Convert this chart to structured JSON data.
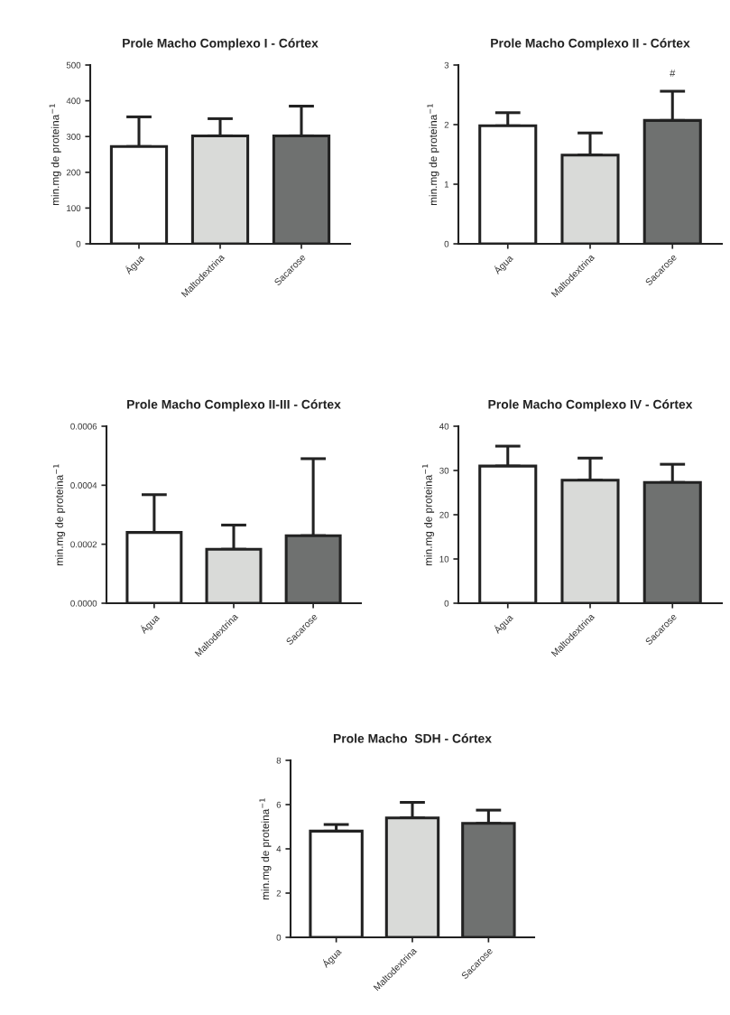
{
  "chart_data": [
    {
      "type": "bar",
      "title": "Prole Macho Complexo I - Córtex",
      "ylabel": "min.mg de proteina$^{−1}$",
      "categories": [
        "Água",
        "Maltodextrina",
        "Sacarose"
      ],
      "values": [
        272,
        302,
        302
      ],
      "colors": [
        "#ffffff",
        "#d9dad8",
        "#6f7170"
      ],
      "errors": [
        [
          272,
          355
        ],
        [
          302,
          350
        ],
        [
          302,
          385
        ]
      ],
      "ylim": [
        0,
        500
      ],
      "yticks": [
        0,
        100,
        200,
        300,
        400,
        500
      ],
      "grid": false,
      "legend": false
    },
    {
      "type": "bar",
      "title": "Prole Macho Complexo II - Córtex",
      "ylabel": "min.mg de proteina$^{−1}$",
      "categories": [
        "Água",
        "Maltodextrina",
        "Sacarose"
      ],
      "values": [
        1.98,
        1.49,
        2.07
      ],
      "colors": [
        "#ffffff",
        "#d9dad8",
        "#6f7170"
      ],
      "errors": [
        [
          1.98,
          2.2
        ],
        [
          1.49,
          1.86
        ],
        [
          2.07,
          2.56
        ]
      ],
      "ylim": [
        0,
        3
      ],
      "yticks": [
        0,
        1,
        2,
        3
      ],
      "annotations": [
        "#"
      ],
      "grid": false,
      "legend": false
    },
    {
      "type": "bar",
      "title": "Prole Macho Complexo II-III - Córtex",
      "ylabel": "min.mg de proteina$^{−1}$",
      "categories": [
        "Água",
        "Maltodextrina",
        "Sacarose"
      ],
      "values": [
        0.00024,
        0.000183,
        0.000229
      ],
      "colors": [
        "#ffffff",
        "#d9dad8",
        "#6f7170"
      ],
      "errors": [
        [
          0.00024,
          0.000368
        ],
        [
          0.000183,
          0.000265
        ],
        [
          0.000229,
          0.00049
        ]
      ],
      "ylim": [
        0,
        0.0006
      ],
      "yticks": [
        {
          "value": 0,
          "label": "0.0000"
        },
        {
          "value": 0.0002,
          "label": "0.0002"
        },
        {
          "value": 0.0004,
          "label": "0.0004"
        },
        {
          "value": 0.0006,
          "label": "0.0006"
        }
      ],
      "grid": false,
      "legend": false
    },
    {
      "type": "bar",
      "title": "Prole Macho Complexo IV - Córtex",
      "ylabel": "min.mg de proteina$^{−1}$",
      "categories": [
        "Água",
        "Maltodextrina",
        "Sacarose"
      ],
      "values": [
        31,
        27.8,
        27.3
      ],
      "colors": [
        "#ffffff",
        "#d9dad8",
        "#6f7170"
      ],
      "errors": [
        [
          31,
          35.5
        ],
        [
          27.8,
          32.8
        ],
        [
          27.3,
          31.4
        ]
      ],
      "ylim": [
        0,
        40
      ],
      "yticks": [
        0,
        10,
        20,
        30,
        40
      ],
      "grid": false,
      "legend": false
    },
    {
      "type": "bar",
      "title": "Prole Macho  SDH - Córtex",
      "ylabel": "min.mg de proteina$^{−1}$",
      "categories": [
        "Água",
        "Maltodextrina",
        "Sacarose"
      ],
      "values": [
        4.8,
        5.4,
        5.15
      ],
      "colors": [
        "#ffffff",
        "#d9dad8",
        "#6f7170"
      ],
      "errors": [
        [
          4.8,
          5.1
        ],
        [
          5.4,
          6.1
        ],
        [
          5.15,
          5.75
        ]
      ],
      "ylim": [
        0,
        8
      ],
      "yticks": [
        0,
        2,
        4,
        6,
        8
      ],
      "grid": false,
      "legend": false
    }
  ]
}
